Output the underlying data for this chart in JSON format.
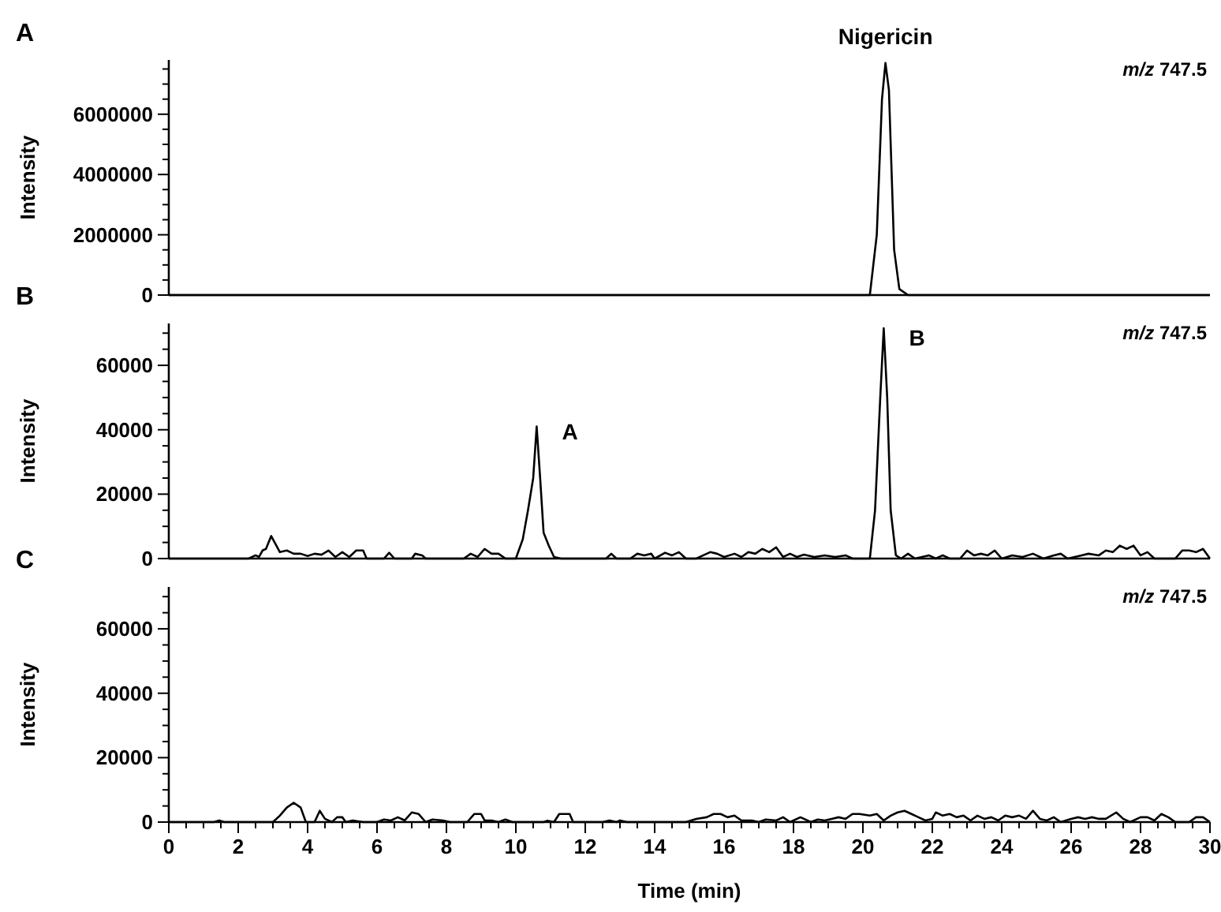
{
  "chart_data": [
    {
      "type": "line",
      "ylabel": "Intensity",
      "annotations": [
        "A",
        {
          "text": "Nigericin",
          "x": 20.65,
          "y": 7700000
        },
        "m/z 747.5"
      ],
      "xlim": [
        0,
        30
      ],
      "ylim": [
        0,
        7800000
      ],
      "tick_labels": "y",
      "yticks": [
        0,
        {
          "value": 500000,
          "label": null
        },
        {
          "value": 1000000,
          "label": null
        },
        {
          "value": 1500000,
          "label": null
        },
        2000000,
        {
          "value": 2500000,
          "label": null
        },
        {
          "value": 3000000,
          "label": null
        },
        {
          "value": 3500000,
          "label": null
        },
        4000000,
        {
          "value": 4500000,
          "label": null
        },
        {
          "value": 5000000,
          "label": null
        },
        {
          "value": 5500000,
          "label": null
        },
        6000000,
        {
          "value": 6500000,
          "label": null
        },
        {
          "value": 7000000,
          "label": null
        },
        {
          "value": 7500000,
          "label": null
        }
      ],
      "x": [
        0,
        20.2,
        20.4,
        20.55,
        20.65,
        20.75,
        20.9,
        21.05,
        21.3,
        30
      ],
      "series": [
        {
          "color": "#000000",
          "values": [
            0,
            0,
            2000000,
            6500000,
            7700000,
            6800000,
            1500000,
            200000,
            0,
            0
          ]
        }
      ]
    },
    {
      "type": "line",
      "ylabel": "Intensity",
      "annotations": [
        "B",
        {
          "text": "A",
          "x": 10.6,
          "y": 41000
        },
        {
          "text": "B",
          "x": 20.6,
          "y": 71500
        },
        "m/z 747.5"
      ],
      "xlim": [
        0,
        30
      ],
      "ylim": [
        0,
        73000
      ],
      "tick_labels": "y",
      "yticks": [
        0,
        {
          "value": 5000,
          "label": null
        },
        {
          "value": 10000,
          "label": null
        },
        {
          "value": 15000,
          "label": null
        },
        20000,
        {
          "value": 25000,
          "label": null
        },
        {
          "value": 30000,
          "label": null
        },
        {
          "value": 35000,
          "label": null
        },
        40000,
        {
          "value": 45000,
          "label": null
        },
        {
          "value": 50000,
          "label": null
        },
        {
          "value": 55000,
          "label": null
        },
        60000,
        {
          "value": 65000,
          "label": null
        },
        {
          "value": 70000,
          "label": null
        }
      ],
      "x": [
        0,
        2.3,
        2.5,
        2.6,
        2.7,
        2.8,
        2.95,
        3.1,
        3.2,
        3.4,
        3.6,
        3.8,
        4.0,
        4.2,
        4.4,
        4.6,
        4.8,
        5.0,
        5.2,
        5.4,
        5.6,
        5.7,
        6.2,
        6.35,
        6.5,
        7.0,
        7.1,
        7.3,
        7.4,
        8.5,
        8.7,
        8.9,
        9.1,
        9.3,
        9.5,
        9.7,
        10.0,
        10.2,
        10.35,
        10.5,
        10.6,
        10.7,
        10.8,
        10.95,
        11.1,
        11.3,
        12.6,
        12.75,
        12.9,
        13.3,
        13.5,
        13.7,
        13.9,
        14.0,
        14.3,
        14.5,
        14.7,
        14.9,
        15.2,
        15.4,
        15.6,
        15.8,
        16.0,
        16.3,
        16.5,
        16.7,
        16.9,
        17.1,
        17.3,
        17.5,
        17.7,
        17.9,
        18.1,
        18.3,
        18.6,
        18.9,
        19.2,
        19.5,
        19.7,
        20.2,
        20.35,
        20.5,
        20.6,
        20.7,
        20.8,
        20.95,
        21.1,
        21.3,
        21.5,
        21.9,
        22.1,
        22.3,
        22.5,
        22.8,
        23.0,
        23.2,
        23.4,
        23.6,
        23.8,
        24.0,
        24.3,
        24.6,
        24.9,
        25.2,
        25.5,
        25.7,
        25.9,
        26.3,
        26.5,
        26.8,
        27.0,
        27.2,
        27.4,
        27.6,
        27.8,
        28.0,
        28.2,
        28.4,
        29.0,
        29.2,
        29.4,
        29.6,
        29.8,
        30
      ],
      "series": [
        {
          "color": "#000000",
          "values": [
            0,
            0,
            1000,
            500,
            2500,
            3000,
            7000,
            4000,
            2000,
            2500,
            1500,
            1500,
            800,
            1500,
            1200,
            2500,
            500,
            2000,
            500,
            2500,
            2500,
            0,
            0,
            1800,
            0,
            0,
            1500,
            1000,
            0,
            0,
            1500,
            500,
            3000,
            1500,
            1500,
            0,
            0,
            6000,
            15000,
            25000,
            41000,
            25000,
            8000,
            4000,
            500,
            0,
            0,
            1500,
            0,
            0,
            1500,
            1000,
            1500,
            0,
            1800,
            1000,
            2000,
            0,
            0,
            1000,
            2000,
            1500,
            500,
            1500,
            500,
            2000,
            1500,
            3000,
            2000,
            3500,
            500,
            1500,
            500,
            1200,
            500,
            1000,
            500,
            1000,
            0,
            0,
            15000,
            50000,
            71500,
            50000,
            15000,
            1000,
            0,
            1500,
            0,
            1000,
            0,
            1000,
            0,
            0,
            2500,
            1000,
            1500,
            1000,
            2500,
            0,
            1000,
            500,
            1500,
            0,
            1000,
            1500,
            0,
            1000,
            1500,
            1000,
            2500,
            2000,
            4000,
            3000,
            4000,
            1000,
            2000,
            0,
            0,
            2500,
            2500,
            2000,
            3000,
            0
          ]
        }
      ]
    },
    {
      "type": "line",
      "ylabel": "Intensity",
      "xlabel": "Time (min)",
      "annotations": [
        "C",
        "m/z 747.5"
      ],
      "xlim": [
        0,
        30
      ],
      "ylim": [
        0,
        73000
      ],
      "xticks": [
        0,
        {
          "value": 0.5,
          "label": null
        },
        {
          "value": 1,
          "label": null
        },
        {
          "value": 1.5,
          "label": null
        },
        2,
        {
          "value": 2.5,
          "label": null
        },
        {
          "value": 3,
          "label": null
        },
        {
          "value": 3.5,
          "label": null
        },
        4,
        {
          "value": 4.5,
          "label": null
        },
        {
          "value": 5,
          "label": null
        },
        {
          "value": 5.5,
          "label": null
        },
        6,
        {
          "value": 6.5,
          "label": null
        },
        {
          "value": 7,
          "label": null
        },
        {
          "value": 7.5,
          "label": null
        },
        8,
        {
          "value": 8.5,
          "label": null
        },
        {
          "value": 9,
          "label": null
        },
        {
          "value": 9.5,
          "label": null
        },
        10,
        {
          "value": 10.5,
          "label": null
        },
        {
          "value": 11,
          "label": null
        },
        {
          "value": 11.5,
          "label": null
        },
        12,
        {
          "value": 12.5,
          "label": null
        },
        {
          "value": 13,
          "label": null
        },
        {
          "value": 13.5,
          "label": null
        },
        14,
        {
          "value": 14.5,
          "label": null
        },
        {
          "value": 15,
          "label": null
        },
        {
          "value": 15.5,
          "label": null
        },
        16,
        {
          "value": 16.5,
          "label": null
        },
        {
          "value": 17,
          "label": null
        },
        {
          "value": 17.5,
          "label": null
        },
        18,
        {
          "value": 18.5,
          "label": null
        },
        {
          "value": 19,
          "label": null
        },
        {
          "value": 19.5,
          "label": null
        },
        20,
        {
          "value": 20.5,
          "label": null
        },
        {
          "value": 21,
          "label": null
        },
        {
          "value": 21.5,
          "label": null
        },
        22,
        {
          "value": 22.5,
          "label": null
        },
        {
          "value": 23,
          "label": null
        },
        {
          "value": 23.5,
          "label": null
        },
        24,
        {
          "value": 24.5,
          "label": null
        },
        {
          "value": 25,
          "label": null
        },
        {
          "value": 25.5,
          "label": null
        },
        26,
        {
          "value": 26.5,
          "label": null
        },
        {
          "value": 27,
          "label": null
        },
        {
          "value": 27.5,
          "label": null
        },
        28,
        {
          "value": 28.5,
          "label": null
        },
        {
          "value": 29,
          "label": null
        },
        {
          "value": 29.5,
          "label": null
        },
        30
      ],
      "yticks": [
        0,
        {
          "value": 5000,
          "label": null
        },
        {
          "value": 10000,
          "label": null
        },
        {
          "value": 15000,
          "label": null
        },
        20000,
        {
          "value": 25000,
          "label": null
        },
        {
          "value": 30000,
          "label": null
        },
        {
          "value": 35000,
          "label": null
        },
        40000,
        {
          "value": 45000,
          "label": null
        },
        {
          "value": 50000,
          "label": null
        },
        {
          "value": 55000,
          "label": null
        },
        60000,
        {
          "value": 65000,
          "label": null
        },
        {
          "value": 70000,
          "label": null
        }
      ],
      "x": [
        0,
        1.3,
        1.45,
        1.6,
        3.0,
        3.2,
        3.4,
        3.6,
        3.8,
        3.95,
        4.2,
        4.35,
        4.5,
        4.7,
        4.85,
        5.0,
        5.1,
        5.3,
        5.6,
        6.0,
        6.2,
        6.4,
        6.6,
        6.8,
        7.0,
        7.2,
        7.4,
        7.6,
        7.9,
        8.1,
        8.6,
        8.8,
        9.0,
        9.1,
        9.3,
        9.5,
        9.7,
        9.9,
        10.8,
        10.9,
        11.1,
        11.25,
        11.55,
        11.65,
        12.5,
        12.7,
        12.9,
        13.0,
        13.2,
        14.9,
        15.2,
        15.5,
        15.7,
        15.9,
        16.1,
        16.3,
        16.5,
        16.8,
        17.0,
        17.2,
        17.5,
        17.7,
        17.9,
        18.2,
        18.5,
        18.7,
        18.9,
        19.1,
        19.3,
        19.5,
        19.7,
        19.9,
        20.2,
        20.4,
        20.6,
        20.8,
        21.0,
        21.2,
        21.4,
        21.6,
        21.8,
        22.0,
        22.1,
        22.3,
        22.5,
        22.7,
        22.9,
        23.1,
        23.3,
        23.5,
        23.7,
        23.9,
        24.1,
        24.3,
        24.5,
        24.7,
        24.9,
        25.1,
        25.3,
        25.5,
        25.7,
        26.0,
        26.2,
        26.4,
        26.6,
        26.8,
        27.0,
        27.3,
        27.5,
        27.7,
        28.0,
        28.2,
        28.4,
        28.6,
        28.8,
        29.0,
        29.4,
        29.6,
        29.8,
        30
      ],
      "series": [
        {
          "color": "#000000",
          "values": [
            0,
            0,
            500,
            0,
            0,
            2000,
            4500,
            6000,
            4500,
            0,
            0,
            3500,
            1000,
            0,
            1500,
            1500,
            0,
            500,
            0,
            0,
            800,
            500,
            1500,
            500,
            3000,
            2500,
            0,
            800,
            500,
            0,
            0,
            2500,
            2500,
            500,
            500,
            0,
            800,
            0,
            0,
            400,
            0,
            2500,
            2500,
            0,
            0,
            500,
            0,
            500,
            0,
            0,
            1000,
            1500,
            2500,
            2500,
            1500,
            2000,
            500,
            500,
            0,
            800,
            500,
            1500,
            0,
            1500,
            0,
            800,
            500,
            1000,
            1500,
            1000,
            2500,
            2500,
            2000,
            2500,
            500,
            2000,
            3000,
            3500,
            2500,
            1500,
            500,
            1000,
            3000,
            2000,
            2500,
            1500,
            2000,
            500,
            2000,
            1000,
            1500,
            500,
            2000,
            1500,
            2000,
            1000,
            3500,
            1000,
            500,
            1500,
            0,
            1000,
            1500,
            1000,
            1500,
            1000,
            1000,
            3000,
            1000,
            0,
            1500,
            1500,
            500,
            2500,
            1500,
            0,
            0,
            1500,
            1500,
            0
          ]
        }
      ]
    }
  ]
}
